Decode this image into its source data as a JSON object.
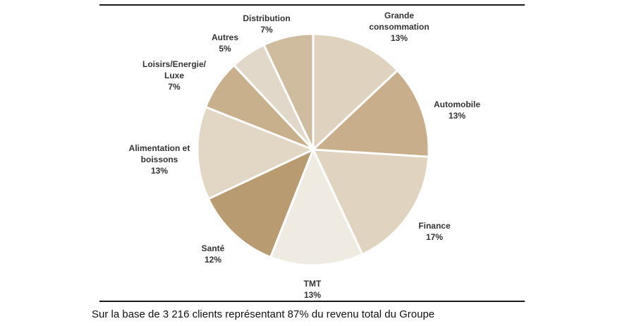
{
  "chart_data": {
    "type": "pie",
    "title": "",
    "footnote": "Sur la base de 3 216 clients représentant 87% du revenu total du Groupe",
    "slices": [
      {
        "label_lines": [
          "Grande",
          "consommation"
        ],
        "value": 13,
        "value_label": "13%",
        "color": "#dfd2be"
      },
      {
        "label_lines": [
          "Automobile"
        ],
        "value": 13,
        "value_label": "13%",
        "color": "#c8ae8a"
      },
      {
        "label_lines": [
          "Finance"
        ],
        "value": 17,
        "value_label": "17%",
        "color": "#e0d4c1"
      },
      {
        "label_lines": [
          "TMT"
        ],
        "value": 13,
        "value_label": "13%",
        "color": "#f0ebe2"
      },
      {
        "label_lines": [
          "Santé"
        ],
        "value": 12,
        "value_label": "12%",
        "color": "#b89b70"
      },
      {
        "label_lines": [
          "Alimentation et",
          "boissons"
        ],
        "value": 13,
        "value_label": "13%",
        "color": "#e2d6c4"
      },
      {
        "label_lines": [
          "Loisirs/Energie/",
          "Luxe"
        ],
        "value": 7,
        "value_label": "7%",
        "color": "#c9b08c"
      },
      {
        "label_lines": [
          "Autres"
        ],
        "value": 5,
        "value_label": "5%",
        "color": "#e2d8c9"
      },
      {
        "label_lines": [
          "Distribution"
        ],
        "value": 7,
        "value_label": "7%",
        "color": "#cfbb9e"
      }
    ]
  }
}
